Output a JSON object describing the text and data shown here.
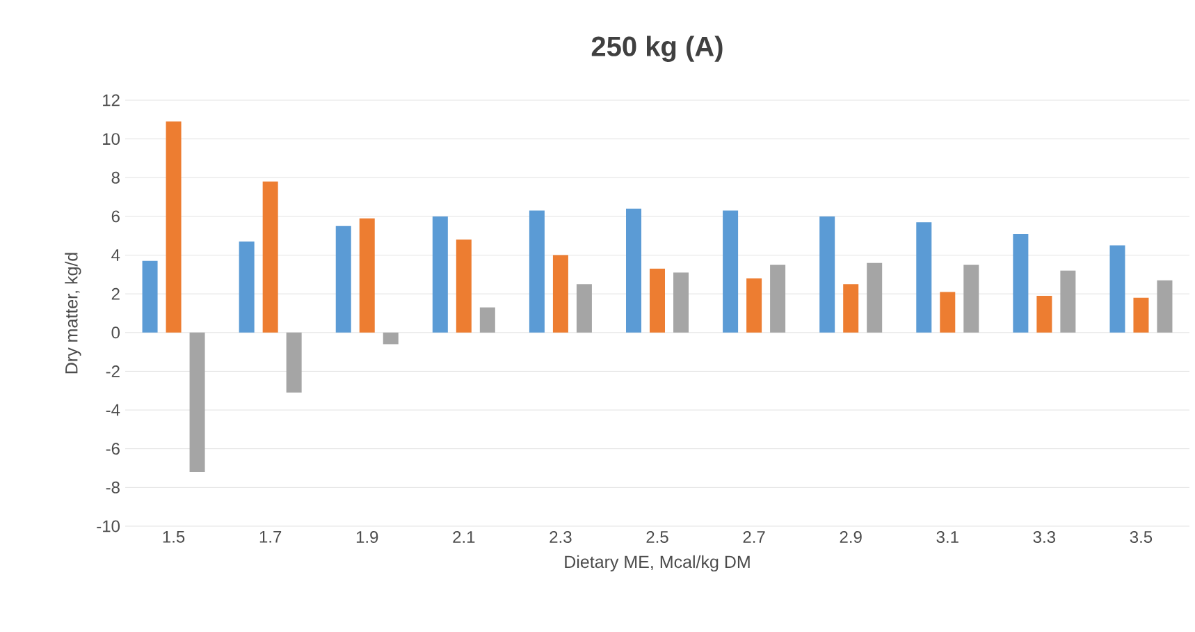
{
  "chart_data": {
    "type": "bar",
    "title": "250 kg (A)",
    "xlabel": "Dietary ME, Mcal/kg DM",
    "ylabel": "Dry matter, kg/d",
    "categories": [
      "1.5",
      "1.7",
      "1.9",
      "2.1",
      "2.3",
      "2.5",
      "2.7",
      "2.9",
      "3.1",
      "3.3",
      "3.5"
    ],
    "series": [
      {
        "color": "#5b9bd5",
        "values": [
          3.7,
          4.7,
          5.5,
          6.0,
          6.3,
          6.4,
          6.3,
          6.0,
          5.7,
          5.1,
          4.5
        ]
      },
      {
        "color": "#ed7d31",
        "values": [
          10.9,
          7.8,
          5.9,
          4.8,
          4.0,
          3.3,
          2.8,
          2.5,
          2.1,
          1.9,
          1.8
        ]
      },
      {
        "color": "#a5a5a5",
        "values": [
          -7.2,
          -3.1,
          -0.6,
          1.3,
          2.5,
          3.1,
          3.5,
          3.6,
          3.5,
          3.2,
          2.7
        ]
      }
    ],
    "ylim": [
      -10,
      12
    ],
    "yticks": [
      -10,
      -8,
      -6,
      -4,
      -2,
      0,
      2,
      4,
      6,
      8,
      10,
      12
    ],
    "grid": "y"
  }
}
